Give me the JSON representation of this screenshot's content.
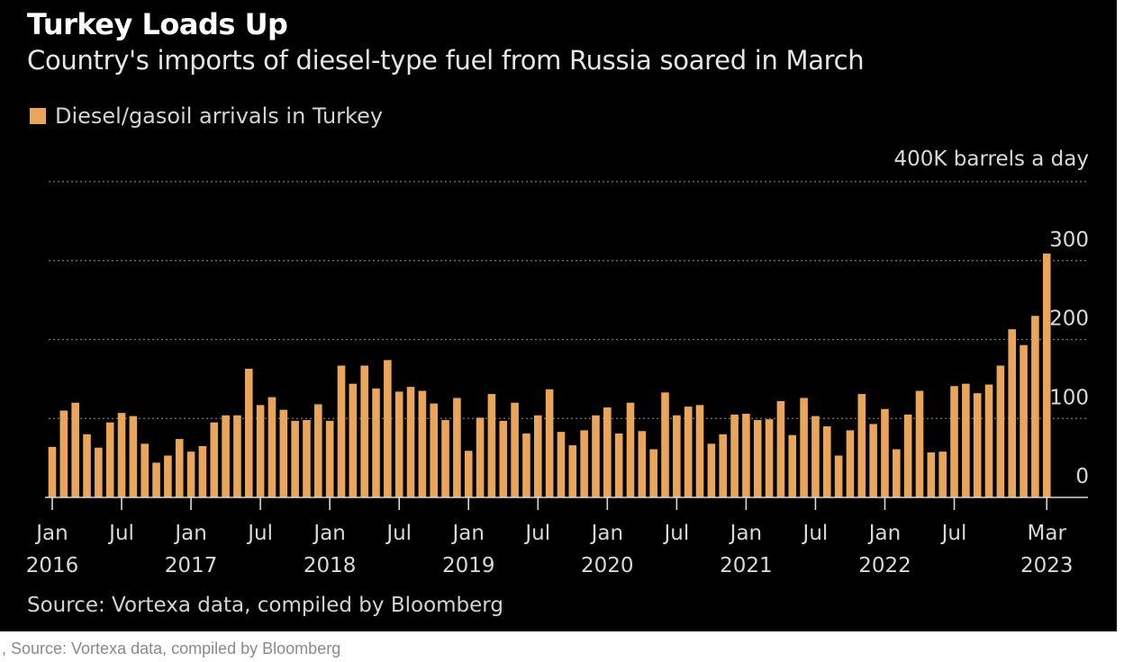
{
  "chart_data": {
    "type": "bar",
    "title": "Turkey Loads Up",
    "subtitle": "Country's imports of diesel-type fuel from Russia soared in March",
    "series": [
      {
        "name": "Diesel/gasoil arrivals in Turkey",
        "color": "#e9a55a",
        "values": [
          64,
          110,
          120,
          80,
          63,
          95,
          107,
          103,
          68,
          44,
          53,
          74,
          58,
          65,
          95,
          104,
          104,
          163,
          117,
          127,
          111,
          97,
          98,
          118,
          97,
          167,
          144,
          167,
          138,
          174,
          134,
          140,
          135,
          119,
          98,
          126,
          59,
          101,
          131,
          97,
          120,
          81,
          104,
          137,
          83,
          66,
          85,
          104,
          114,
          81,
          120,
          84,
          61,
          133,
          104,
          115,
          117,
          68,
          80,
          105,
          106,
          98,
          99,
          122,
          79,
          126,
          103,
          90,
          53,
          85,
          131,
          93,
          112,
          61,
          105,
          135,
          57,
          58,
          141,
          144,
          132,
          143,
          167,
          213,
          193,
          230,
          309
        ]
      }
    ],
    "y_unit_label": "400K barrels a day",
    "ylim": [
      0,
      400
    ],
    "yticks": [
      0,
      100,
      200,
      300,
      400
    ],
    "ytick_labels": [
      "0",
      "100",
      "200",
      "300"
    ],
    "xticks": [
      {
        "index": 0,
        "month": "Jan",
        "year": "2016"
      },
      {
        "index": 6,
        "month": "Jul",
        "year": ""
      },
      {
        "index": 12,
        "month": "Jan",
        "year": "2017"
      },
      {
        "index": 18,
        "month": "Jul",
        "year": ""
      },
      {
        "index": 24,
        "month": "Jan",
        "year": "2018"
      },
      {
        "index": 30,
        "month": "Jul",
        "year": ""
      },
      {
        "index": 36,
        "month": "Jan",
        "year": "2019"
      },
      {
        "index": 42,
        "month": "Jul",
        "year": ""
      },
      {
        "index": 48,
        "month": "Jan",
        "year": "2020"
      },
      {
        "index": 54,
        "month": "Jul",
        "year": ""
      },
      {
        "index": 60,
        "month": "Jan",
        "year": "2021"
      },
      {
        "index": 66,
        "month": "Jul",
        "year": ""
      },
      {
        "index": 72,
        "month": "Jan",
        "year": "2022"
      },
      {
        "index": 78,
        "month": "Jul",
        "year": ""
      },
      {
        "index": 86,
        "month": "Mar",
        "year": "2023"
      }
    ],
    "grid": true,
    "legend_position": "top-left",
    "source": "Source: Vortexa data, compiled by Bloomberg"
  },
  "colors": {
    "background": "#000000",
    "bar": "#e9a55a",
    "grid": "#777777",
    "axis_text": "#d9d9d9"
  },
  "caption": ", Source: Vortexa data, compiled by Bloomberg"
}
